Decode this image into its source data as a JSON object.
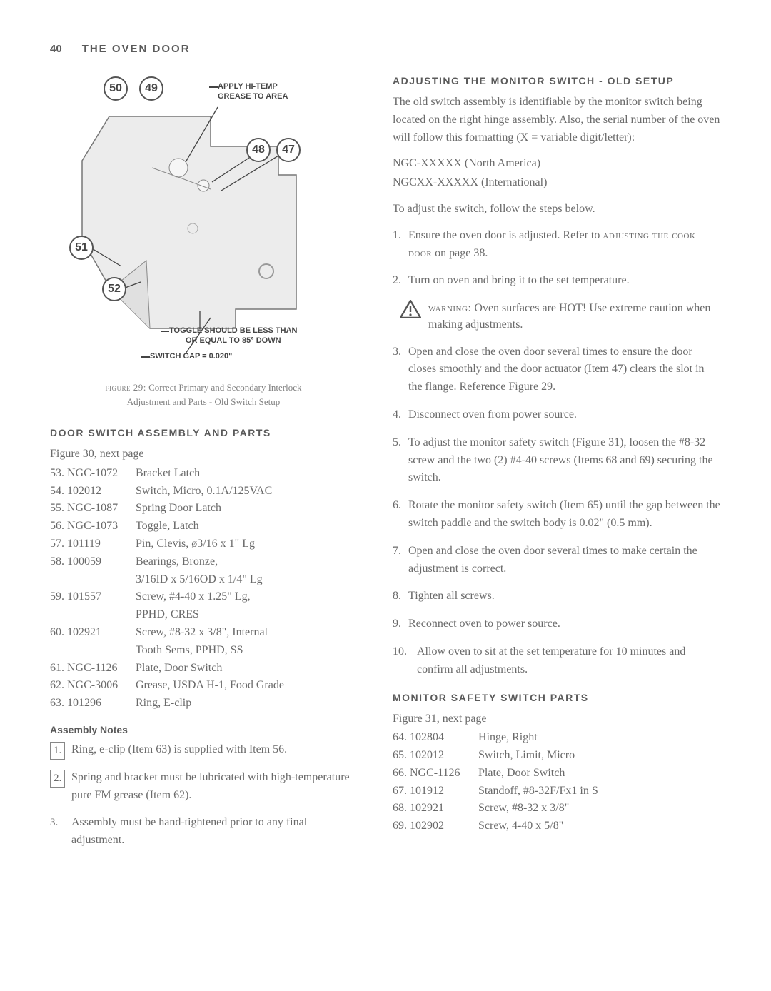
{
  "header": {
    "page_num": "40",
    "section": "THE OVEN DOOR"
  },
  "figure29": {
    "labels": {
      "l50": "50",
      "l49": "49",
      "l48": "48",
      "l47": "47",
      "l51": "51",
      "l52": "52"
    },
    "annot_top": "APPLY HI-TEMP\nGREASE TO AREA",
    "annot_mid": "TOGGLE SHOULD BE LESS THAN\nOR EQUAL TO 85° DOWN",
    "annot_bot": "SWITCH GAP = 0.020\"",
    "caption_a": "figure 29:",
    "caption_b": " Correct Primary and Secondary Interlock",
    "caption_c": "Adjustment and Parts - Old Switch Setup"
  },
  "left": {
    "h_parts": "DOOR SWITCH ASSEMBLY AND PARTS",
    "fig30": "Figure 30, next page",
    "parts": [
      {
        "n": "53. NGC-1072",
        "d": "Bracket Latch"
      },
      {
        "n": "54. 102012",
        "d": "Switch, Micro, 0.1A/125VAC"
      },
      {
        "n": "55. NGC-1087",
        "d": "Spring Door Latch"
      },
      {
        "n": "56. NGC-1073",
        "d": "Toggle, Latch"
      },
      {
        "n": "57. 101119",
        "d": "Pin, Clevis, ø3/16 x 1\" Lg"
      },
      {
        "n": "58. 100059",
        "d": "Bearings, Bronze,"
      },
      {
        "n": "",
        "d": "3/16ID x 5/16OD x 1/4\" Lg"
      },
      {
        "n": "59. 101557",
        "d": "Screw, #4-40 x 1.25\" Lg,"
      },
      {
        "n": "",
        "d": "PPHD, CRES"
      },
      {
        "n": "60. 102921",
        "d": "Screw, #8-32 x 3/8\", Internal"
      },
      {
        "n": "",
        "d": "Tooth Sems, PPHD, SS"
      },
      {
        "n": "61. NGC-1126",
        "d": "Plate, Door Switch"
      },
      {
        "n": "62. NGC-3006",
        "d": "Grease, USDA H-1, Food Grade"
      },
      {
        "n": "63. 101296",
        "d": "Ring, E-clip"
      }
    ],
    "h_notes": "Assembly Notes",
    "note1": "Ring, e-clip (Item 63) is supplied with Item 56.",
    "note2": "Spring and bracket must be lubricated with high-temperature pure FM grease (Item 62).",
    "note3": "Assembly must be hand-tightened prior to any final adjustment."
  },
  "right": {
    "h_adjust": "ADJUSTING THE MONITOR SWITCH - OLD SETUP",
    "p1": "The old switch assembly is identifiable by the monitor switch being located on the right hinge assembly. Also, the serial number of the oven will follow this formatting (X = variable digit/letter):",
    "p2a": "NGC-XXXXX (North America)",
    "p2b": "NGCXX-XXXXX (International)",
    "p3": "To adjust the switch, follow the steps below.",
    "s1a": "Ensure the oven door is adjusted. Refer to ",
    "s1b": "adjusting the cook door",
    "s1c": " on page 38.",
    "s2": "Turn on oven and bring it to the set temperature.",
    "warn_a": "warning:",
    "warn_b": " Oven surfaces are HOT! Use extreme caution when making adjustments.",
    "s3": "Open and close the oven door several times to ensure the door closes smoothly and the door actuator (Item 47) clears the slot in the flange. Reference Figure 29.",
    "s4": "Disconnect oven from power source.",
    "s5": "To adjust the monitor safety switch (Figure 31), loosen the #8-32 screw and the two (2) #4-40 screws (Items 68 and 69) securing the switch.",
    "s6": "Rotate the monitor safety switch (Item 65) until the gap between the switch paddle and the switch body is 0.02\" (0.5 mm).",
    "s7": "Open and close the oven door several times to make certain the adjustment is correct.",
    "s8": "Tighten all screws.",
    "s9": "Reconnect oven to power source.",
    "s10": "Allow oven to sit at the set temperature for 10 minutes and confirm all adjustments.",
    "h_monitor": "MONITOR SAFETY SWITCH PARTS",
    "fig31": "Figure 31, next page",
    "mparts": [
      {
        "n": "64. 102804",
        "d": "Hinge, Right"
      },
      {
        "n": "65. 102012",
        "d": "Switch, Limit, Micro"
      },
      {
        "n": "66. NGC-1126",
        "d": "Plate, Door Switch"
      },
      {
        "n": "67. 101912",
        "d": "Standoff, #8-32F/Fx1 in S"
      },
      {
        "n": "68. 102921",
        "d": "Screw, #8-32 x 3/8\""
      },
      {
        "n": "69. 102902",
        "d": "Screw, 4-40 x 5/8\""
      }
    ]
  }
}
